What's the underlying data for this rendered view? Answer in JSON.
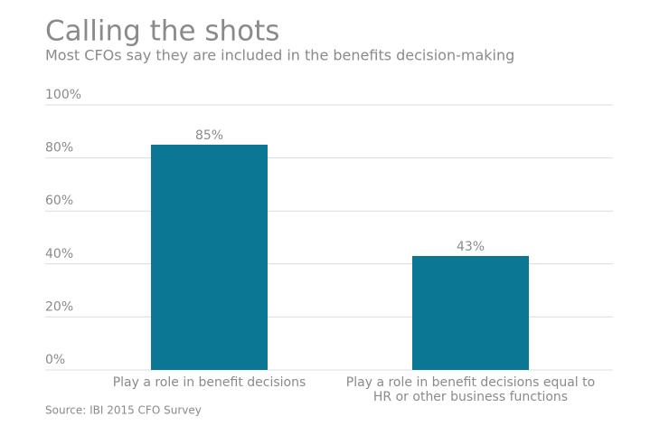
{
  "chart_data": {
    "type": "bar",
    "title": "Calling the shots",
    "subtitle": "Most CFOs say they are included in the benefits decision-making",
    "categories": [
      "Play a role in benefit decisions",
      "Play a role in benefit decisions equal to HR or other business functions"
    ],
    "values": [
      85,
      43
    ],
    "value_labels": [
      "85%",
      "43%"
    ],
    "color": "#0c7794",
    "ylim": [
      0,
      100
    ],
    "yticks": [
      {
        "value": 0,
        "label": "0%"
      },
      {
        "value": 20,
        "label": "20%"
      },
      {
        "value": 40,
        "label": "40%"
      },
      {
        "value": 60,
        "label": "60%"
      },
      {
        "value": 80,
        "label": "80%"
      },
      {
        "value": 100,
        "label": "100%"
      }
    ],
    "grid": true,
    "source": "Source: IBI 2015 CFO Survey"
  }
}
